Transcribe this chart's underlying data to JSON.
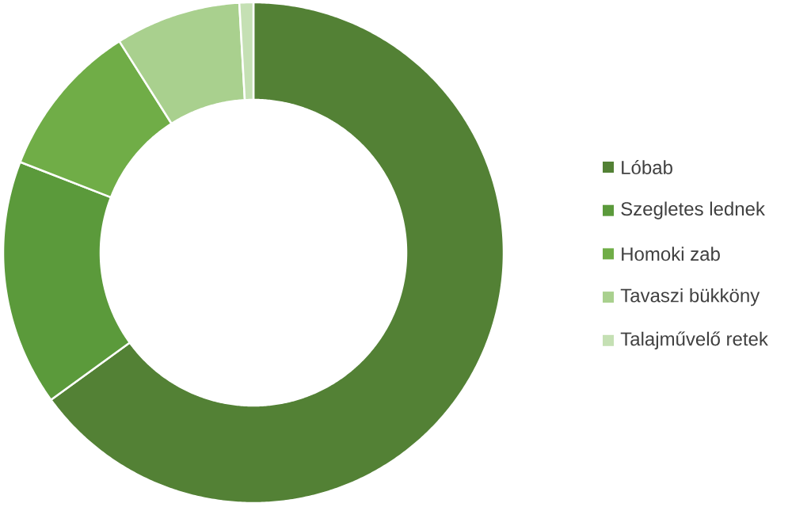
{
  "chart_data": {
    "type": "donut",
    "categories": [
      "Lóbab",
      "Szegletes lednek",
      "Homoki zab",
      "Tavaszi bükköny",
      "Talajművelő retek"
    ],
    "values": [
      65.0,
      15.9,
      10.1,
      8.1,
      0.9
    ],
    "colors": [
      "#538135",
      "#5b9a3b",
      "#70ad47",
      "#a9d08e",
      "#c5e0b4"
    ],
    "legend": "right"
  }
}
